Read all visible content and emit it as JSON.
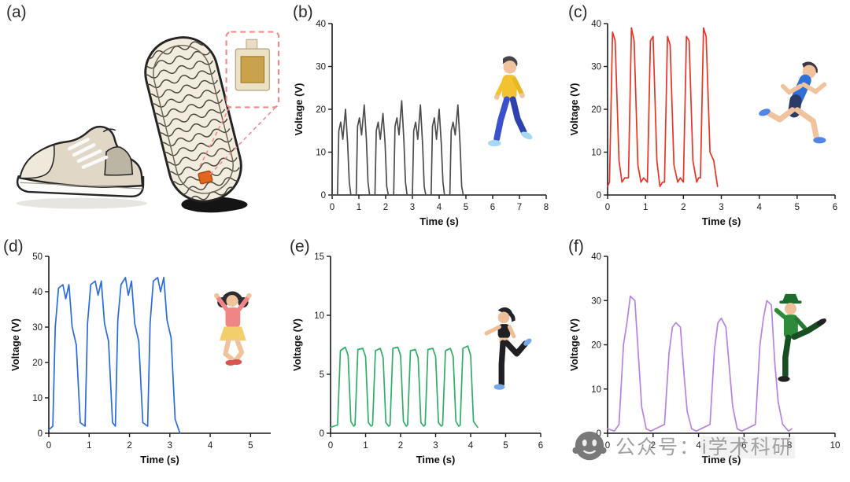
{
  "panels": {
    "a": {
      "label": "(a)",
      "illustration": "sneaker-with-sensor-inset"
    },
    "b": {
      "label": "(b)"
    },
    "c": {
      "label": "(c)"
    },
    "d": {
      "label": "(d)"
    },
    "e": {
      "label": "(e)"
    },
    "f": {
      "label": "(f)"
    }
  },
  "watermark": {
    "prefix": "公众号：",
    "account": "i学术科研",
    "logo": "wechat-face-logo"
  },
  "chart_data": [
    {
      "panel": "b",
      "type": "line",
      "color": "#4d4d4d",
      "title": "",
      "xlabel": "Time (s)",
      "ylabel": "Voltage (V)",
      "xlim": [
        0,
        8
      ],
      "ylim": [
        0,
        40
      ],
      "xticks": [
        0,
        1,
        2,
        3,
        4,
        5,
        6,
        7,
        8
      ],
      "yticks": [
        0,
        10,
        20,
        30,
        40
      ],
      "illustration": "walking-person",
      "points": [
        [
          0,
          0
        ],
        [
          0.2,
          0
        ],
        [
          0.25,
          15
        ],
        [
          0.32,
          17
        ],
        [
          0.4,
          13
        ],
        [
          0.5,
          20
        ],
        [
          0.58,
          12
        ],
        [
          0.64,
          3
        ],
        [
          0.7,
          0
        ],
        [
          0.9,
          0
        ],
        [
          0.95,
          16
        ],
        [
          1.02,
          18
        ],
        [
          1.1,
          14
        ],
        [
          1.2,
          21
        ],
        [
          1.28,
          13
        ],
        [
          1.34,
          3
        ],
        [
          1.4,
          0
        ],
        [
          1.6,
          0
        ],
        [
          1.65,
          15
        ],
        [
          1.72,
          17
        ],
        [
          1.8,
          13
        ],
        [
          1.9,
          19
        ],
        [
          1.98,
          12
        ],
        [
          2.04,
          2
        ],
        [
          2.1,
          0
        ],
        [
          2.3,
          0
        ],
        [
          2.35,
          16
        ],
        [
          2.42,
          18
        ],
        [
          2.5,
          14
        ],
        [
          2.6,
          22
        ],
        [
          2.68,
          13
        ],
        [
          2.74,
          3
        ],
        [
          2.8,
          0
        ],
        [
          3.0,
          0
        ],
        [
          3.05,
          15
        ],
        [
          3.12,
          17
        ],
        [
          3.2,
          13
        ],
        [
          3.3,
          21
        ],
        [
          3.38,
          12
        ],
        [
          3.44,
          2
        ],
        [
          3.5,
          0
        ],
        [
          3.7,
          0
        ],
        [
          3.75,
          16
        ],
        [
          3.82,
          18
        ],
        [
          3.9,
          13
        ],
        [
          4.0,
          20
        ],
        [
          4.08,
          12
        ],
        [
          4.14,
          3
        ],
        [
          4.2,
          0
        ],
        [
          4.4,
          0
        ],
        [
          4.45,
          15
        ],
        [
          4.52,
          17
        ],
        [
          4.6,
          14
        ],
        [
          4.7,
          21
        ],
        [
          4.78,
          12
        ],
        [
          4.84,
          2
        ],
        [
          4.9,
          0
        ]
      ]
    },
    {
      "panel": "c",
      "type": "line",
      "color": "#e93323",
      "title": "",
      "xlabel": "Time (s)",
      "ylabel": "Voltage (V)",
      "xlim": [
        0,
        6
      ],
      "ylim": [
        0,
        40
      ],
      "xticks": [
        0,
        1,
        2,
        3,
        4,
        5,
        6
      ],
      "yticks": [
        0,
        10,
        20,
        30,
        40
      ],
      "illustration": "running-person",
      "points": [
        [
          0,
          2
        ],
        [
          0.05,
          3
        ],
        [
          0.13,
          38
        ],
        [
          0.2,
          36
        ],
        [
          0.3,
          8
        ],
        [
          0.38,
          3
        ],
        [
          0.45,
          4
        ],
        [
          0.55,
          4
        ],
        [
          0.63,
          39
        ],
        [
          0.7,
          36
        ],
        [
          0.8,
          7
        ],
        [
          0.88,
          3
        ],
        [
          0.95,
          4
        ],
        [
          1.05,
          3
        ],
        [
          1.13,
          36
        ],
        [
          1.2,
          37
        ],
        [
          1.3,
          8
        ],
        [
          1.38,
          2
        ],
        [
          1.45,
          3
        ],
        [
          1.5,
          3
        ],
        [
          1.58,
          37
        ],
        [
          1.65,
          35
        ],
        [
          1.75,
          7
        ],
        [
          1.85,
          3
        ],
        [
          1.92,
          4
        ],
        [
          2.0,
          3
        ],
        [
          2.08,
          37
        ],
        [
          2.15,
          36
        ],
        [
          2.25,
          8
        ],
        [
          2.35,
          3
        ],
        [
          2.4,
          4
        ],
        [
          2.45,
          4
        ],
        [
          2.53,
          39
        ],
        [
          2.6,
          37
        ],
        [
          2.7,
          10
        ],
        [
          2.8,
          8
        ],
        [
          2.9,
          2
        ]
      ]
    },
    {
      "panel": "d",
      "type": "line",
      "color": "#2b6bdf",
      "title": "",
      "xlabel": "Time (s)",
      "ylabel": "Voltage (V)",
      "xlim": [
        0,
        5.5
      ],
      "ylim": [
        0,
        50
      ],
      "xticks": [
        0,
        1,
        2,
        3,
        4,
        5
      ],
      "yticks": [
        0,
        10,
        20,
        30,
        40,
        50
      ],
      "illustration": "jumping-person",
      "points": [
        [
          0,
          1
        ],
        [
          0.1,
          2
        ],
        [
          0.16,
          30
        ],
        [
          0.24,
          41
        ],
        [
          0.35,
          42
        ],
        [
          0.42,
          38
        ],
        [
          0.5,
          42
        ],
        [
          0.58,
          30
        ],
        [
          0.68,
          25
        ],
        [
          0.78,
          3
        ],
        [
          0.9,
          2
        ],
        [
          0.96,
          31
        ],
        [
          1.04,
          42
        ],
        [
          1.15,
          43
        ],
        [
          1.22,
          39
        ],
        [
          1.3,
          43
        ],
        [
          1.38,
          31
        ],
        [
          1.48,
          26
        ],
        [
          1.58,
          3
        ],
        [
          1.65,
          2
        ],
        [
          1.71,
          32
        ],
        [
          1.79,
          42
        ],
        [
          1.9,
          44
        ],
        [
          1.97,
          39
        ],
        [
          2.05,
          43
        ],
        [
          2.13,
          31
        ],
        [
          2.23,
          26
        ],
        [
          2.33,
          3
        ],
        [
          2.45,
          2
        ],
        [
          2.51,
          31
        ],
        [
          2.59,
          43
        ],
        [
          2.7,
          44
        ],
        [
          2.77,
          40
        ],
        [
          2.85,
          44
        ],
        [
          2.93,
          32
        ],
        [
          3.03,
          27
        ],
        [
          3.13,
          4
        ],
        [
          3.25,
          0
        ]
      ]
    },
    {
      "panel": "e",
      "type": "line",
      "color": "#2fae66",
      "title": "",
      "xlabel": "Time (s)",
      "ylabel": "Voltage (V)",
      "xlim": [
        0,
        6
      ],
      "ylim": [
        0,
        15
      ],
      "xticks": [
        0,
        1,
        2,
        3,
        4,
        5,
        6
      ],
      "yticks": [
        0,
        5,
        10,
        15
      ],
      "illustration": "leg-raise-person",
      "points": [
        [
          0,
          0.5
        ],
        [
          0.2,
          0.7
        ],
        [
          0.28,
          7
        ],
        [
          0.42,
          7.3
        ],
        [
          0.5,
          6.6
        ],
        [
          0.58,
          1
        ],
        [
          0.66,
          0.6
        ],
        [
          0.7,
          0.7
        ],
        [
          0.78,
          7.1
        ],
        [
          0.92,
          7.2
        ],
        [
          1.0,
          6.5
        ],
        [
          1.08,
          0.9
        ],
        [
          1.16,
          0.6
        ],
        [
          1.2,
          0.7
        ],
        [
          1.28,
          7.0
        ],
        [
          1.42,
          7.2
        ],
        [
          1.5,
          6.4
        ],
        [
          1.58,
          0.9
        ],
        [
          1.66,
          0.6
        ],
        [
          1.7,
          0.7
        ],
        [
          1.78,
          7.2
        ],
        [
          1.92,
          7.3
        ],
        [
          2.0,
          6.6
        ],
        [
          2.08,
          1
        ],
        [
          2.16,
          0.6
        ],
        [
          2.2,
          0.7
        ],
        [
          2.28,
          7.0
        ],
        [
          2.42,
          7.1
        ],
        [
          2.5,
          6.4
        ],
        [
          2.58,
          0.9
        ],
        [
          2.66,
          0.6
        ],
        [
          2.7,
          0.7
        ],
        [
          2.78,
          7.1
        ],
        [
          2.92,
          7.2
        ],
        [
          3.0,
          6.5
        ],
        [
          3.08,
          0.9
        ],
        [
          3.16,
          0.6
        ],
        [
          3.2,
          0.7
        ],
        [
          3.28,
          7.0
        ],
        [
          3.42,
          7.2
        ],
        [
          3.5,
          6.5
        ],
        [
          3.58,
          1
        ],
        [
          3.66,
          0.6
        ],
        [
          3.7,
          0.7
        ],
        [
          3.78,
          7.2
        ],
        [
          3.92,
          7.4
        ],
        [
          4.0,
          6.6
        ],
        [
          4.08,
          1
        ],
        [
          4.2,
          0.5
        ]
      ]
    },
    {
      "panel": "f",
      "type": "line",
      "color": "#b683e0",
      "title": "",
      "xlabel": "Time (s)",
      "ylabel": "Voltage (V)",
      "xlim": [
        0,
        10
      ],
      "ylim": [
        0,
        40
      ],
      "xticks": [
        0,
        2,
        4,
        6,
        8,
        10
      ],
      "yticks": [
        0,
        10,
        20,
        30,
        40
      ],
      "illustration": "kicking-person",
      "points": [
        [
          0,
          1
        ],
        [
          0.3,
          0.5
        ],
        [
          0.5,
          2
        ],
        [
          0.7,
          20
        ],
        [
          0.85,
          25
        ],
        [
          1.0,
          31
        ],
        [
          1.2,
          30
        ],
        [
          1.35,
          18
        ],
        [
          1.5,
          6
        ],
        [
          1.7,
          1
        ],
        [
          1.9,
          0.5
        ],
        [
          2.1,
          1
        ],
        [
          2.5,
          2
        ],
        [
          2.7,
          18
        ],
        [
          2.85,
          24
        ],
        [
          3.0,
          25
        ],
        [
          3.2,
          24
        ],
        [
          3.35,
          14
        ],
        [
          3.5,
          5
        ],
        [
          3.7,
          1
        ],
        [
          3.9,
          0.5
        ],
        [
          4.5,
          2
        ],
        [
          4.7,
          19
        ],
        [
          4.85,
          25
        ],
        [
          5.0,
          26
        ],
        [
          5.2,
          24
        ],
        [
          5.35,
          15
        ],
        [
          5.5,
          6
        ],
        [
          5.7,
          1
        ],
        [
          5.9,
          0.5
        ],
        [
          6.5,
          2
        ],
        [
          6.7,
          20
        ],
        [
          6.85,
          26
        ],
        [
          7.0,
          30
        ],
        [
          7.2,
          29
        ],
        [
          7.35,
          16
        ],
        [
          7.5,
          7
        ],
        [
          7.7,
          2
        ],
        [
          7.95,
          0.5
        ],
        [
          8.1,
          1
        ]
      ]
    }
  ]
}
